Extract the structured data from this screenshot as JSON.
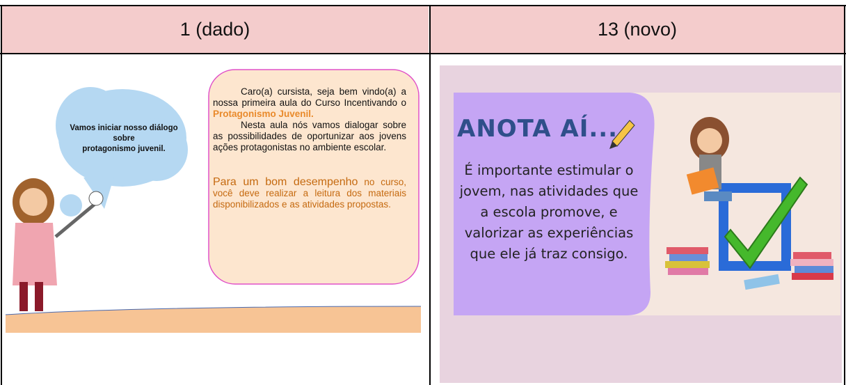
{
  "table": {
    "headers": [
      "1 (dado)",
      "13 (novo)"
    ]
  },
  "slide_left": {
    "cloud_lines": [
      "Vamos iniciar nosso diálogo",
      "sobre",
      "protagonismo juvenil."
    ],
    "box": {
      "p1_text": "Caro(a) cursista, seja bem vindo(a) a nossa primeira aula do Curso Incentivando o ",
      "p1_highlight": "Protagonismo Juvenil.",
      "p2": "Nesta aula nós vamos dialogar sobre as possibilidades de oportunizar aos jovens ações protagonistas no ambiente escolar.",
      "p3_highlight": "Para um bom desempenho",
      "p3_text": " no curso, você deve realizar a leitura dos materiais disponibilizados e as atividades propostas."
    }
  },
  "slide_right": {
    "title": "ANOTA AÍ...",
    "body": "É importante estimular o jovem, nas atividades que a escola promove, e valorizar as experiências que ele já traz consigo."
  }
}
